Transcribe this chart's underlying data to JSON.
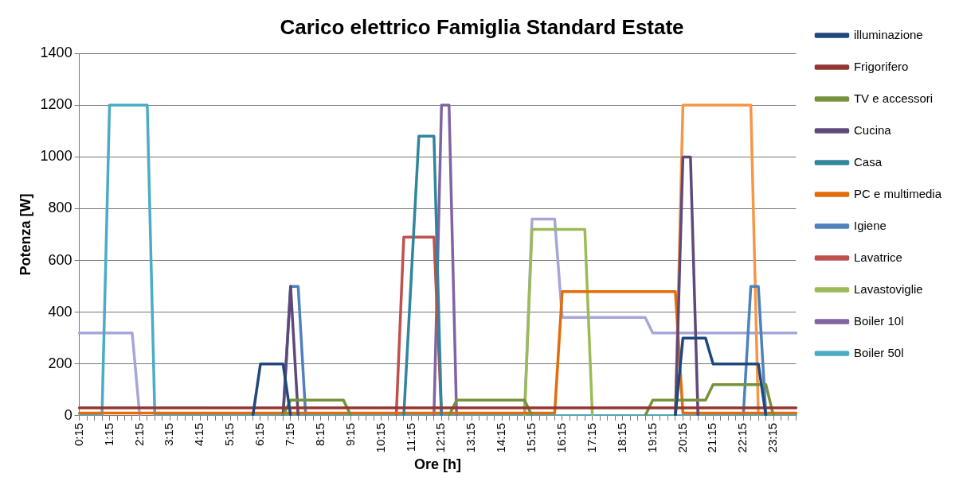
{
  "chart_data": {
    "type": "line",
    "title": "Carico elettrico Famiglia Standard Estate",
    "xlabel": "Ore [h]",
    "ylabel": "Potenza [W]",
    "categories": [
      "0:15",
      null,
      null,
      null,
      "1:15",
      null,
      null,
      null,
      "2:15",
      null,
      null,
      null,
      "3:15",
      null,
      null,
      null,
      "4:15",
      null,
      null,
      null,
      "5:15",
      null,
      null,
      null,
      "6:15",
      null,
      null,
      null,
      "7:15",
      null,
      null,
      null,
      "8:15",
      null,
      null,
      null,
      "9:15",
      null,
      null,
      null,
      "10:15",
      null,
      null,
      null,
      "11:15",
      null,
      null,
      null,
      "12:15",
      null,
      null,
      null,
      "13:15",
      null,
      null,
      null,
      "14:15",
      null,
      null,
      null,
      "15:15",
      null,
      null,
      null,
      "16:15",
      null,
      null,
      null,
      "17:15",
      null,
      null,
      null,
      "18:15",
      null,
      null,
      null,
      "19:15",
      null,
      null,
      null,
      "20:15",
      null,
      null,
      null,
      "21:15",
      null,
      null,
      null,
      "22:15",
      null,
      null,
      null,
      "23:15",
      null,
      null,
      null
    ],
    "ylim": [
      0,
      1400
    ],
    "yticks": [
      0,
      200,
      400,
      600,
      800,
      1000,
      1200,
      1400
    ],
    "grid": "y",
    "legend": "right",
    "marker": "none",
    "line_style": "solid",
    "series": [
      {
        "name": "illuminazione",
        "color": "#1f497d",
        "values": [
          null,
          null,
          null,
          null,
          null,
          null,
          null,
          null,
          null,
          null,
          null,
          null,
          null,
          null,
          null,
          null,
          null,
          null,
          null,
          null,
          null,
          null,
          null,
          0,
          200,
          200,
          200,
          200,
          0,
          null,
          null,
          null,
          null,
          null,
          null,
          null,
          null,
          null,
          null,
          null,
          null,
          null,
          null,
          null,
          null,
          null,
          null,
          null,
          null,
          null,
          null,
          null,
          null,
          null,
          null,
          null,
          null,
          null,
          null,
          null,
          null,
          null,
          null,
          null,
          null,
          null,
          null,
          null,
          null,
          null,
          null,
          null,
          null,
          null,
          null,
          null,
          null,
          null,
          null,
          0,
          300,
          300,
          300,
          300,
          200,
          200,
          200,
          200,
          200,
          200,
          200,
          0,
          null,
          null,
          null,
          null
        ]
      },
      {
        "name": "Frigorifero",
        "color": "#943634",
        "values": [
          30,
          30,
          30,
          30,
          30,
          30,
          30,
          30,
          30,
          30,
          30,
          30,
          30,
          30,
          30,
          30,
          30,
          30,
          30,
          30,
          30,
          30,
          30,
          30,
          30,
          30,
          30,
          30,
          30,
          30,
          30,
          30,
          30,
          30,
          30,
          30,
          30,
          30,
          30,
          30,
          30,
          30,
          30,
          30,
          30,
          30,
          30,
          30,
          30,
          30,
          30,
          30,
          30,
          30,
          30,
          30,
          30,
          30,
          30,
          30,
          30,
          30,
          30,
          30,
          30,
          30,
          30,
          30,
          30,
          30,
          30,
          30,
          30,
          30,
          30,
          30,
          30,
          30,
          30,
          30,
          30,
          30,
          30,
          30,
          30,
          30,
          30,
          30,
          30,
          30,
          30,
          30,
          30,
          30,
          30,
          30
        ]
      },
      {
        "name": "TV e accessori",
        "color": "#76923c",
        "values": [
          null,
          null,
          null,
          null,
          null,
          null,
          null,
          null,
          null,
          null,
          null,
          null,
          null,
          null,
          null,
          null,
          null,
          null,
          null,
          null,
          null,
          null,
          null,
          null,
          null,
          null,
          null,
          0,
          60,
          60,
          60,
          60,
          60,
          60,
          60,
          60,
          0,
          null,
          null,
          null,
          null,
          null,
          null,
          null,
          null,
          null,
          null,
          null,
          null,
          0,
          60,
          60,
          60,
          60,
          60,
          60,
          60,
          60,
          60,
          60,
          0,
          null,
          null,
          null,
          null,
          null,
          null,
          null,
          null,
          null,
          null,
          null,
          null,
          null,
          null,
          0,
          60,
          60,
          60,
          60,
          60,
          60,
          60,
          60,
          120,
          120,
          120,
          120,
          120,
          120,
          120,
          120,
          0,
          null,
          null,
          null
        ]
      },
      {
        "name": "Cucina",
        "color": "#5f497a",
        "values": [
          null,
          null,
          null,
          null,
          null,
          null,
          null,
          null,
          null,
          null,
          null,
          null,
          null,
          null,
          null,
          null,
          null,
          null,
          null,
          null,
          null,
          null,
          null,
          null,
          null,
          null,
          null,
          0,
          500,
          0,
          null,
          null,
          null,
          null,
          null,
          null,
          null,
          null,
          null,
          null,
          null,
          null,
          null,
          null,
          null,
          null,
          null,
          null,
          null,
          null,
          null,
          null,
          null,
          null,
          null,
          null,
          null,
          null,
          null,
          null,
          null,
          null,
          null,
          null,
          null,
          null,
          null,
          null,
          null,
          null,
          null,
          null,
          null,
          null,
          null,
          null,
          null,
          null,
          null,
          0,
          1000,
          1000,
          0,
          null,
          null,
          null,
          null,
          null,
          null,
          null,
          null,
          null,
          null,
          null,
          null,
          null
        ]
      },
      {
        "name": "Casa",
        "color": "#31859c",
        "values": [
          null,
          null,
          null,
          null,
          null,
          null,
          null,
          null,
          null,
          null,
          null,
          null,
          null,
          null,
          null,
          null,
          null,
          null,
          null,
          null,
          null,
          null,
          null,
          null,
          null,
          null,
          null,
          null,
          null,
          null,
          null,
          null,
          null,
          null,
          null,
          null,
          null,
          null,
          null,
          null,
          null,
          null,
          null,
          0,
          540,
          1080,
          1080,
          1080,
          0,
          null,
          null,
          null,
          null,
          null,
          null,
          null,
          null,
          null,
          null,
          null,
          null,
          null,
          null,
          null,
          null,
          null,
          null,
          null,
          null,
          null,
          null,
          null,
          null,
          null,
          null,
          null,
          null,
          null,
          null,
          null,
          null,
          null,
          null,
          null,
          null,
          null,
          null,
          null,
          null,
          null,
          null,
          null,
          null,
          null,
          null,
          null
        ]
      },
      {
        "name": "PC e multimedia",
        "color": "#e46c0a",
        "values": [
          10,
          10,
          10,
          10,
          10,
          10,
          10,
          10,
          10,
          10,
          10,
          10,
          10,
          10,
          10,
          10,
          10,
          10,
          10,
          10,
          10,
          10,
          10,
          10,
          10,
          10,
          10,
          10,
          10,
          10,
          10,
          10,
          10,
          10,
          10,
          10,
          10,
          10,
          10,
          10,
          10,
          10,
          10,
          10,
          10,
          10,
          10,
          10,
          10,
          10,
          10,
          10,
          10,
          10,
          10,
          10,
          10,
          10,
          10,
          10,
          10,
          10,
          10,
          10,
          480,
          480,
          480,
          480,
          480,
          480,
          480,
          480,
          480,
          480,
          480,
          480,
          480,
          480,
          480,
          480,
          10,
          10,
          10,
          10,
          10,
          10,
          10,
          10,
          10,
          10,
          10,
          10,
          10,
          10,
          10,
          10
        ]
      },
      {
        "name": "Igiene",
        "color": "#4f81bd",
        "values": [
          null,
          null,
          null,
          null,
          null,
          null,
          null,
          null,
          null,
          null,
          null,
          null,
          null,
          null,
          null,
          null,
          null,
          null,
          null,
          null,
          null,
          null,
          null,
          null,
          null,
          null,
          null,
          0,
          500,
          500,
          0,
          null,
          null,
          null,
          null,
          null,
          null,
          null,
          null,
          null,
          null,
          null,
          null,
          null,
          null,
          null,
          null,
          null,
          null,
          null,
          null,
          null,
          null,
          null,
          null,
          null,
          null,
          null,
          null,
          null,
          null,
          null,
          null,
          null,
          null,
          null,
          null,
          null,
          null,
          null,
          null,
          null,
          null,
          null,
          null,
          null,
          null,
          null,
          null,
          null,
          null,
          null,
          null,
          null,
          null,
          null,
          null,
          null,
          0,
          500,
          500,
          0,
          null,
          null,
          null,
          null
        ]
      },
      {
        "name": "Lavatrice",
        "color": "#c0504d",
        "values": [
          null,
          null,
          null,
          null,
          null,
          null,
          null,
          null,
          null,
          null,
          null,
          null,
          null,
          null,
          null,
          null,
          null,
          null,
          null,
          null,
          null,
          null,
          null,
          null,
          null,
          null,
          null,
          null,
          null,
          null,
          null,
          null,
          null,
          null,
          null,
          null,
          null,
          null,
          null,
          null,
          null,
          null,
          0,
          690,
          690,
          690,
          690,
          690,
          0,
          null,
          null,
          null,
          null,
          null,
          null,
          null,
          null,
          null,
          null,
          null,
          null,
          null,
          null,
          null,
          null,
          null,
          null,
          null,
          null,
          null,
          null,
          null,
          null,
          null,
          null,
          null,
          null,
          null,
          null,
          null,
          null,
          null,
          null,
          null,
          null,
          null,
          null,
          null,
          null,
          null,
          null,
          null,
          null,
          null,
          null,
          null
        ]
      },
      {
        "name": "Lavastoviglie",
        "color": "#9bbb59",
        "values": [
          null,
          null,
          null,
          null,
          null,
          null,
          null,
          null,
          null,
          null,
          null,
          null,
          null,
          null,
          null,
          null,
          null,
          null,
          null,
          null,
          null,
          null,
          null,
          null,
          null,
          null,
          null,
          null,
          null,
          null,
          null,
          null,
          null,
          null,
          null,
          null,
          null,
          null,
          null,
          null,
          null,
          null,
          null,
          null,
          null,
          null,
          null,
          null,
          null,
          null,
          null,
          null,
          null,
          null,
          null,
          null,
          null,
          null,
          null,
          0,
          720,
          720,
          720,
          720,
          720,
          720,
          720,
          720,
          0,
          null,
          null,
          null,
          null,
          null,
          null,
          null,
          null,
          null,
          null,
          null,
          null,
          null,
          null,
          null,
          null,
          null,
          null,
          null,
          null,
          null,
          null,
          null,
          null,
          null,
          null,
          null
        ]
      },
      {
        "name": "Boiler 10l",
        "color": "#8064a2",
        "values": [
          null,
          null,
          null,
          null,
          null,
          null,
          null,
          null,
          null,
          null,
          null,
          null,
          null,
          null,
          null,
          null,
          null,
          null,
          null,
          null,
          null,
          null,
          null,
          null,
          null,
          null,
          null,
          null,
          null,
          null,
          null,
          null,
          null,
          null,
          null,
          null,
          null,
          null,
          null,
          null,
          null,
          null,
          null,
          null,
          null,
          null,
          null,
          0,
          1200,
          1200,
          0,
          null,
          null,
          null,
          null,
          null,
          null,
          null,
          null,
          null,
          null,
          null,
          null,
          null,
          null,
          null,
          null,
          null,
          null,
          null,
          null,
          null,
          null,
          null,
          null,
          null,
          null,
          null,
          null,
          null,
          null,
          null,
          null,
          null,
          null,
          null,
          null,
          null,
          null,
          null,
          null,
          null,
          null,
          null,
          null,
          null
        ]
      },
      {
        "name": "Boiler 50l",
        "color": "#4bacc6",
        "values": [
          0,
          0,
          0,
          0,
          1200,
          1200,
          1200,
          1200,
          1200,
          1200,
          0,
          0,
          0,
          0,
          0,
          0,
          0,
          0,
          0,
          0,
          0,
          0,
          0,
          0,
          0,
          0,
          0,
          0,
          0,
          0,
          0,
          0,
          0,
          0,
          0,
          0,
          0,
          0,
          0,
          0,
          0,
          0,
          0,
          0,
          0,
          0,
          0,
          0,
          0,
          0,
          0,
          0,
          0,
          0,
          0,
          0,
          0,
          0,
          0,
          0,
          0,
          0,
          0,
          0,
          0,
          0,
          0,
          0,
          0,
          0,
          0,
          0,
          0,
          0,
          0,
          0,
          0,
          0,
          0,
          0,
          0,
          0,
          0,
          0,
          0,
          0,
          0,
          0,
          0,
          0,
          0,
          0,
          0,
          0,
          0,
          0
        ]
      },
      {
        "color": "#f79646",
        "values": [
          null,
          null,
          null,
          null,
          null,
          null,
          null,
          null,
          null,
          null,
          null,
          null,
          null,
          null,
          null,
          null,
          null,
          null,
          null,
          null,
          null,
          null,
          null,
          null,
          null,
          null,
          null,
          null,
          null,
          null,
          null,
          null,
          null,
          null,
          null,
          null,
          null,
          null,
          null,
          null,
          null,
          null,
          null,
          null,
          null,
          null,
          null,
          null,
          null,
          null,
          null,
          null,
          null,
          null,
          null,
          null,
          null,
          null,
          null,
          null,
          null,
          null,
          null,
          null,
          null,
          null,
          null,
          null,
          null,
          null,
          null,
          null,
          null,
          null,
          null,
          null,
          null,
          null,
          null,
          0,
          1200,
          1200,
          1200,
          1200,
          1200,
          1200,
          1200,
          1200,
          1200,
          1200,
          0,
          null,
          null,
          null,
          null,
          null
        ]
      },
      {
        "color": "#a6a6d9",
        "values": [
          320,
          320,
          320,
          320,
          320,
          320,
          320,
          320,
          0,
          null,
          null,
          null,
          null,
          null,
          null,
          null,
          null,
          null,
          null,
          null,
          null,
          null,
          null,
          null,
          null,
          null,
          null,
          null,
          null,
          null,
          null,
          null,
          null,
          null,
          null,
          null,
          null,
          null,
          null,
          null,
          null,
          null,
          null,
          null,
          null,
          null,
          null,
          null,
          null,
          null,
          null,
          null,
          null,
          null,
          null,
          null,
          null,
          null,
          null,
          0,
          760,
          760,
          760,
          760,
          380,
          380,
          380,
          380,
          380,
          380,
          380,
          380,
          380,
          380,
          380,
          380,
          320,
          320,
          320,
          320,
          320,
          320,
          320,
          320,
          320,
          320,
          320,
          320,
          320,
          320,
          320,
          320,
          320,
          320,
          320,
          320
        ]
      }
    ]
  }
}
